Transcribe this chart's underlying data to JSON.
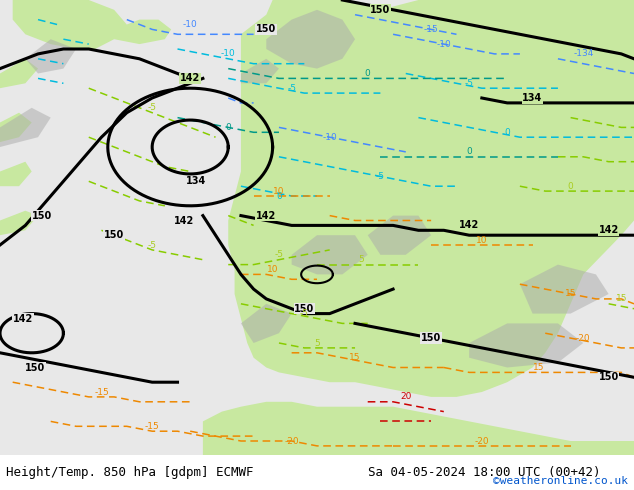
{
  "title_left": "Height/Temp. 850 hPa [gdpm] ECMWF",
  "title_right": "Sa 04-05-2024 18:00 UTC (00+42)",
  "copyright": "©weatheronline.co.uk",
  "land_color": "#c8e8a0",
  "ocean_color": "#e8e8e8",
  "footer_bg": "#ffffff",
  "figsize": [
    6.34,
    4.9
  ],
  "dpi": 100,
  "title_fontsize": 9,
  "copyright_color": "#0055cc",
  "copyright_fontsize": 8,
  "black_lw": 2.2,
  "dash_lw": 1.1
}
